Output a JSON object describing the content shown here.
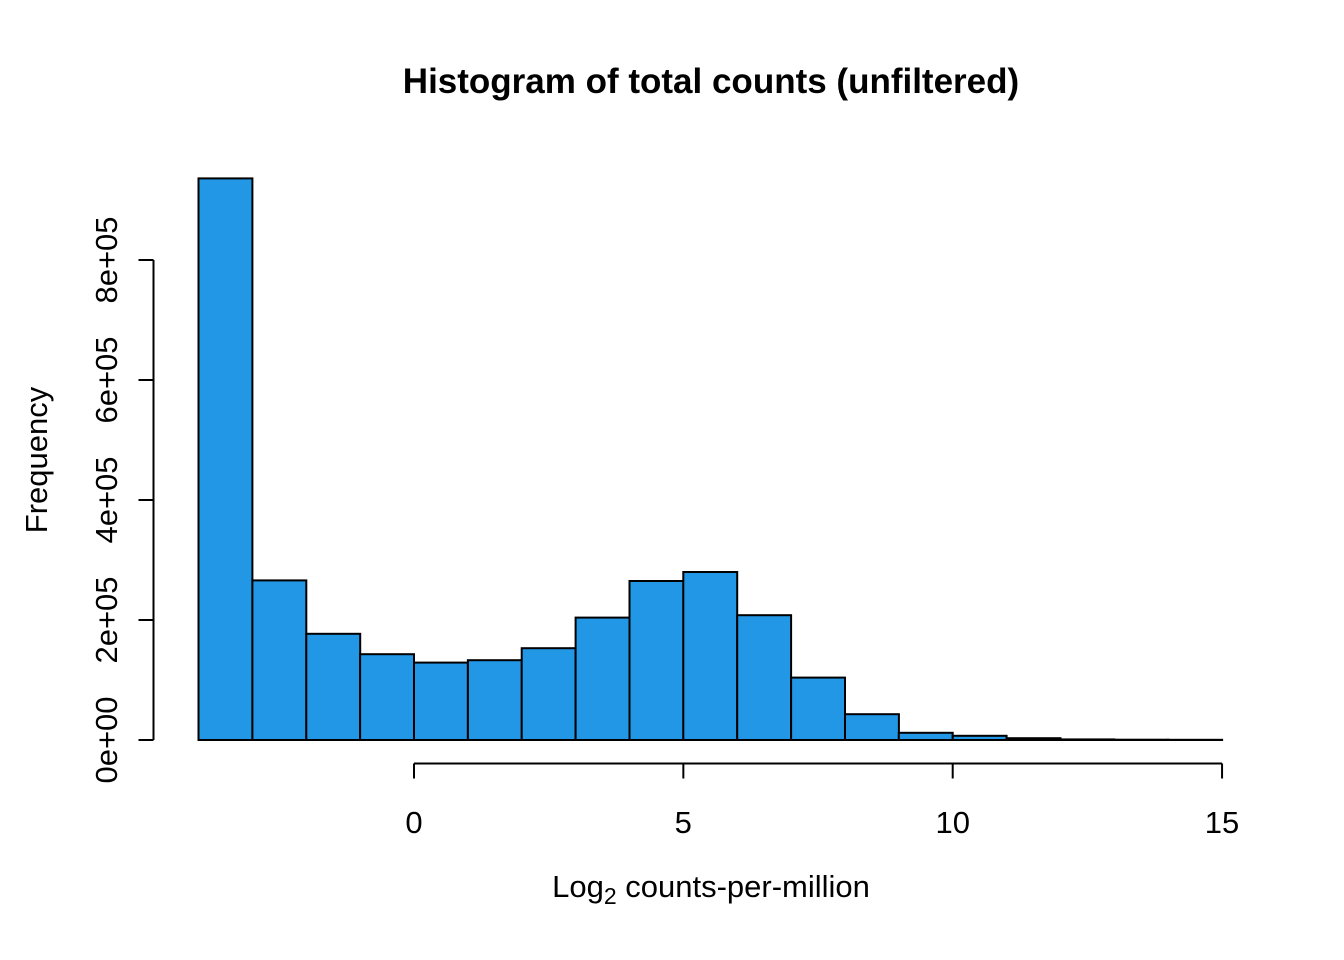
{
  "chart_data": {
    "type": "bar",
    "subtype": "histogram",
    "title": "Histogram of total counts (unfiltered)",
    "xlabel": "Log2 counts-per-million",
    "xlabel_parts": {
      "prefix": "Log",
      "subscript": "2",
      "suffix": " counts-per-million"
    },
    "ylabel": "Frequency",
    "bin_edges": [
      -4,
      -3,
      -2,
      -1,
      0,
      1,
      2,
      3,
      4,
      5,
      6,
      7,
      8,
      9,
      10,
      11,
      12,
      13,
      14,
      15
    ],
    "counts": [
      936000,
      266000,
      177000,
      143000,
      129000,
      133000,
      153000,
      204000,
      265000,
      280000,
      208000,
      104000,
      43000,
      12000,
      7000,
      3000,
      1000,
      500,
      300
    ],
    "x_ticks": [
      {
        "value": 0,
        "label": "0"
      },
      {
        "value": 5,
        "label": "5"
      },
      {
        "value": 10,
        "label": "10"
      },
      {
        "value": 15,
        "label": "15"
      }
    ],
    "y_ticks": [
      {
        "value": 0,
        "label": "0e+00"
      },
      {
        "value": 200000,
        "label": "2e+05"
      },
      {
        "value": 400000,
        "label": "4e+05"
      },
      {
        "value": 600000,
        "label": "6e+05"
      },
      {
        "value": 800000,
        "label": "8e+05"
      }
    ],
    "xlim": [
      -4,
      15
    ],
    "ylim_axis": [
      0,
      800000
    ],
    "grid": false,
    "legend": null,
    "bar_fill": "#2297E6",
    "bar_stroke": "#000000",
    "background": "#FFFFFF"
  }
}
